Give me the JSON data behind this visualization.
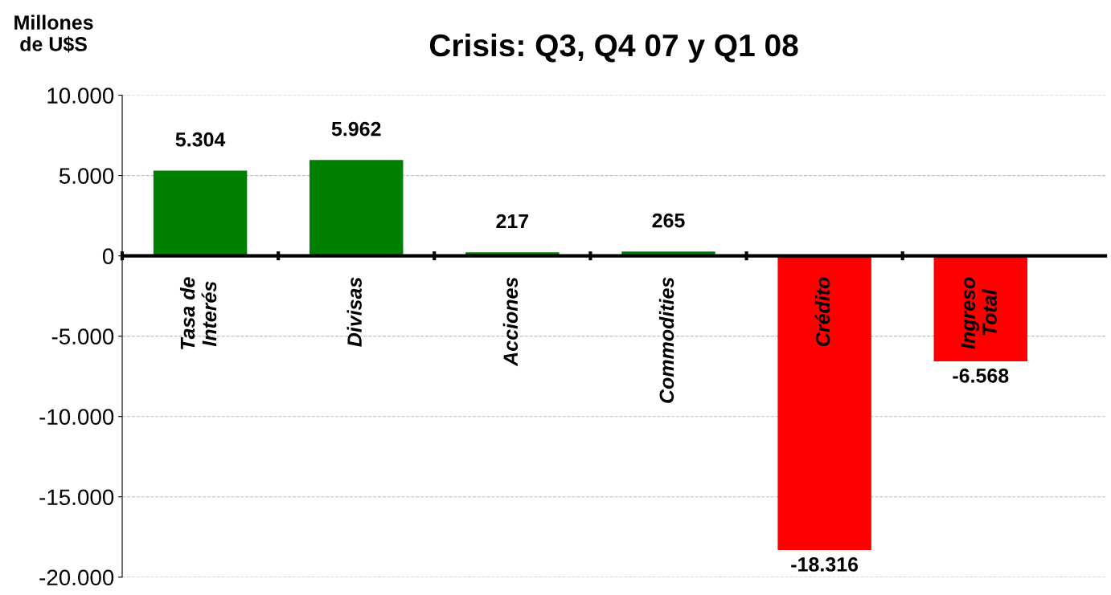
{
  "chart_data": {
    "type": "bar",
    "title": "Crisis: Q3, Q4 07 y Q1 08",
    "ylabel": "Millones\nde U$S",
    "categories": [
      "Tasa de\nInterés",
      "Divisas",
      "Acciones",
      "Commodities",
      "Crédito",
      "Ingreso Total"
    ],
    "values": [
      5304,
      5962,
      217,
      265,
      -18316,
      -6568
    ],
    "colors": [
      "#008000",
      "#008000",
      "#008000",
      "#008000",
      "#ff0000",
      "#ff0000"
    ],
    "value_labels": [
      "5.304",
      "5.962",
      "217",
      "265",
      "-18.316",
      "-6.568"
    ],
    "ylim": [
      -20000,
      10000
    ],
    "yticks": [
      {
        "value": -20000,
        "label": "-20.000"
      },
      {
        "value": -15000,
        "label": "-15.000"
      },
      {
        "value": -10000,
        "label": "-10.000"
      },
      {
        "value": -5000,
        "label": "-5.000"
      },
      {
        "value": 0,
        "label": "0"
      },
      {
        "value": 5000,
        "label": "5.000"
      },
      {
        "value": 10000,
        "label": "10.000"
      }
    ],
    "grid": "y"
  }
}
